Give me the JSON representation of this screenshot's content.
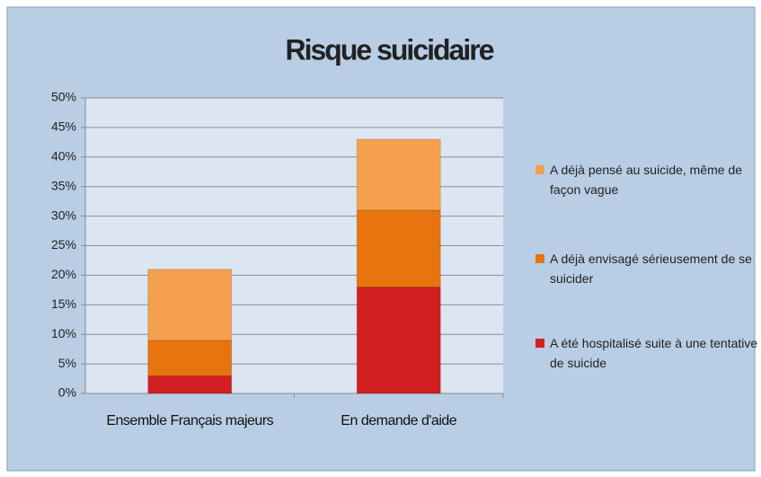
{
  "chart_data": {
    "type": "stacked_bar",
    "title": "Risque suicidaire",
    "categories": [
      "Ensemble Français majeurs",
      "En demande d'aide"
    ],
    "series": [
      {
        "name": "A été hospitalisé suite à une tentative de suicide",
        "color": "#d21f1f",
        "values": [
          3,
          18
        ]
      },
      {
        "name": "A déjà envisagé sérieusement de se suicider",
        "color": "#e8740f",
        "values": [
          6,
          13
        ]
      },
      {
        "name": "A déjà pensé au suicide, même de façon vague",
        "color": "#f5a04c",
        "values": [
          12,
          12
        ]
      }
    ],
    "ylim": [
      0,
      50
    ],
    "yticks": [
      {
        "value": 0,
        "label": "0%"
      },
      {
        "value": 5,
        "label": "5%"
      },
      {
        "value": 10,
        "label": "10%"
      },
      {
        "value": 15,
        "label": "15%"
      },
      {
        "value": 20,
        "label": "20%"
      },
      {
        "value": 25,
        "label": "25%"
      },
      {
        "value": 30,
        "label": "30%"
      },
      {
        "value": 35,
        "label": "35%"
      },
      {
        "value": 40,
        "label": "40%"
      },
      {
        "value": 45,
        "label": "45%"
      },
      {
        "value": 50,
        "label": "50%"
      }
    ],
    "grid": true,
    "legend": "right"
  }
}
